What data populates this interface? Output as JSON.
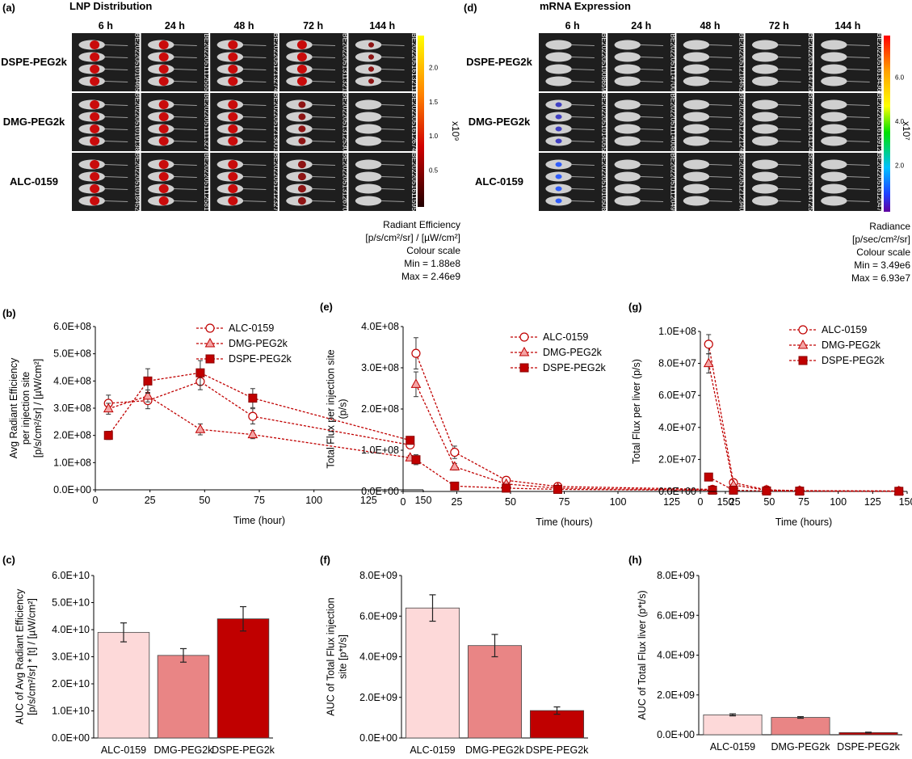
{
  "panels": {
    "a": {
      "label": "(a)",
      "title": "LNP Distribution",
      "columns": [
        "6 h",
        "24 h",
        "48 h",
        "72 h",
        "144 h"
      ],
      "rows": [
        "DSPE-PEG2k",
        "DMG-PEG2k",
        "ALC-0159"
      ],
      "image_ids": [
        [
          "BE2022051019465",
          "BE2022051112555",
          "BE2022051213274",
          "BE2022051311321",
          "BE2022051613211"
        ],
        [
          "BE2022051019138",
          "BE2022051111327",
          "BE2022051213001",
          "BE2022051312530",
          "BE2022051612674"
        ],
        [
          "BE2022051018452",
          "BE2022051112581",
          "BE2022051212327",
          "BE2022051312670",
          "BE2022051611595"
        ]
      ],
      "colorbar_ticks": [
        "2.0",
        "1.5",
        "1.0",
        "0.5"
      ],
      "colorbar_exp": "x10⁹",
      "scale_text": [
        "Radiant Efficiency",
        "[p/s/cm²/sr] / [µW/cm²]",
        "Colour scale",
        "Min = 1.88e8",
        "Max = 2.46e9"
      ]
    },
    "d": {
      "label": "(d)",
      "title": "mRNA Expression",
      "columns": [
        "6 h",
        "24 h",
        "48 h",
        "72 h",
        "144 h"
      ],
      "rows": [
        "DSPE-PEG2k",
        "DMG-PEG2k",
        "ALC-0159"
      ],
      "image_ids": [
        [
          "BE2022051008659",
          "BE2022051114700",
          "BE2022051218452",
          "BE2022051314725",
          "BE2022051613436"
        ],
        [
          "BE2022051014055",
          "BE2022051114008",
          "BE2022051212124",
          "BE2022051314124",
          "BE2022051615912"
        ],
        [
          "BE2022051010508",
          "BE2022051112049",
          "BE2022051212340",
          "BE2022051314725",
          "BE2022051612047"
        ]
      ],
      "colorbar_ticks": [
        "6.0",
        "4.0",
        "2.0"
      ],
      "colorbar_exp": "x10⁷",
      "scale_text": [
        "Radiance",
        "[p/sec/cm²/sr]",
        "Colour scale",
        "Min = 3.49e6",
        "Max = 6.93e7"
      ]
    },
    "b": {
      "label": "(b)"
    },
    "e": {
      "label": "(e)"
    },
    "g": {
      "label": "(g)"
    },
    "c": {
      "label": "(c)"
    },
    "f": {
      "label": "(f)"
    },
    "h": {
      "label": "(h)"
    }
  },
  "colors": {
    "alc_fill": "#fdd9d9",
    "dmg_fill": "#e98585",
    "dspe_fill": "#c00000",
    "line": "#c00000",
    "tri_fill": "#f4a5a5",
    "panel_bg": "#1e1e1e"
  },
  "chart_data": [
    {
      "id": "b",
      "type": "line",
      "ylabel": [
        "Avg Radiant Efficiency",
        "per injection site",
        "[p/s/cm²/sr] / [µW/cm²]"
      ],
      "xlabel": "Time (hour)",
      "xlim": [
        0,
        150
      ],
      "xticks": [
        0,
        25,
        50,
        75,
        100,
        125,
        150
      ],
      "ylim": [
        0,
        600000000
      ],
      "yticks": [
        "0.0E+00",
        "1.0E+08",
        "2.0E+08",
        "3.0E+08",
        "4.0E+08",
        "5.0E+08",
        "6.0E+08"
      ],
      "legend": "top-right",
      "series": [
        {
          "name": "ALC-0159",
          "marker": "circle",
          "x": [
            6,
            24,
            48,
            72,
            144
          ],
          "y": [
            318000000,
            328000000,
            398000000,
            270000000,
            165000000
          ],
          "err": [
            30000000,
            30000000,
            30000000,
            28000000,
            12000000
          ]
        },
        {
          "name": "DMG-PEG2k",
          "marker": "triangle",
          "x": [
            6,
            24,
            48,
            72,
            144
          ],
          "y": [
            298000000,
            345000000,
            222000000,
            203000000,
            118000000
          ],
          "err": [
            20000000,
            22000000,
            20000000,
            15000000,
            8000000
          ]
        },
        {
          "name": "DSPE-PEG2k",
          "marker": "square",
          "x": [
            6,
            24,
            48,
            72,
            144
          ],
          "y": [
            200000000,
            400000000,
            430000000,
            337000000,
            182000000
          ],
          "err": [
            15000000,
            45000000,
            45000000,
            35000000,
            12000000
          ]
        }
      ]
    },
    {
      "id": "e",
      "type": "line",
      "ylabel": [
        "Total Flux  per injection site",
        "(p/s)"
      ],
      "xlabel": "Time (hours)",
      "xlim": [
        0,
        150
      ],
      "xticks": [
        0,
        25,
        50,
        75,
        100,
        125,
        150
      ],
      "ylim": [
        0,
        400000000
      ],
      "yticks": [
        "0.0E+00",
        "1.0E+08",
        "2.0E+08",
        "3.0E+08",
        "4.0E+08"
      ],
      "legend": "top-right",
      "series": [
        {
          "name": "ALC-0159",
          "marker": "circle",
          "x": [
            6,
            24,
            48,
            72,
            144
          ],
          "y": [
            335000000,
            95000000,
            27000000,
            12000000,
            5000000
          ],
          "err": [
            38000000,
            15000000,
            5000000,
            3000000,
            2000000
          ]
        },
        {
          "name": "DMG-PEG2k",
          "marker": "triangle",
          "x": [
            6,
            24,
            48,
            72,
            144
          ],
          "y": [
            260000000,
            60000000,
            18000000,
            8000000,
            3000000
          ],
          "err": [
            30000000,
            8000000,
            4000000,
            2000000,
            1000000
          ]
        },
        {
          "name": "DSPE-PEG2k",
          "marker": "square",
          "x": [
            6,
            24,
            48,
            72,
            144
          ],
          "y": [
            77000000,
            13000000,
            8000000,
            5000000,
            3000000
          ],
          "err": [
            12000000,
            3000000,
            2000000,
            1000000,
            1000000
          ]
        }
      ]
    },
    {
      "id": "g",
      "type": "line",
      "ylabel": [
        "Total Flux per liver (p/s)"
      ],
      "xlabel": "Time (hours)",
      "xlim": [
        0,
        150
      ],
      "xticks": [
        0,
        25,
        50,
        75,
        100,
        125,
        150
      ],
      "ylim": [
        0,
        100000000
      ],
      "yticks": [
        "0.0E+00",
        "2.0E+07",
        "4.0E+07",
        "6.0E+07",
        "8.0E+07",
        "1.0E+08"
      ],
      "legend": "top-right",
      "series": [
        {
          "name": "ALC-0159",
          "marker": "circle",
          "x": [
            6,
            24,
            48,
            72,
            144
          ],
          "y": [
            92000000,
            5500000,
            1000000,
            500000,
            300000
          ],
          "err": [
            6000000,
            1000000,
            300000,
            200000,
            100000
          ]
        },
        {
          "name": "DMG-PEG2k",
          "marker": "triangle",
          "x": [
            6,
            24,
            48,
            72,
            144
          ],
          "y": [
            80000000,
            4000000,
            800000,
            400000,
            200000
          ],
          "err": [
            6000000,
            800000,
            200000,
            100000,
            100000
          ]
        },
        {
          "name": "DSPE-PEG2k",
          "marker": "square",
          "x": [
            6,
            24,
            48,
            72,
            144
          ],
          "y": [
            9000000,
            800000,
            300000,
            200000,
            100000
          ],
          "err": [
            1000000,
            200000,
            100000,
            100000,
            50000
          ]
        }
      ]
    },
    {
      "id": "c",
      "type": "bar",
      "ylabel": [
        "AUC of Avg Radiant Efficiency",
        "[p/s/cm²/sr] * [t] / [µW/cm²]"
      ],
      "categories": [
        "ALC-0159",
        "DMG-PEG2k",
        "DSPE-PEG2k"
      ],
      "values": [
        39000000000,
        30500000000,
        44000000000
      ],
      "err": [
        3500000000,
        2500000000,
        4500000000
      ],
      "ylim": [
        0,
        60000000000
      ],
      "yticks": [
        "0.0E+00",
        "1.0E+10",
        "2.0E+10",
        "3.0E+10",
        "4.0E+10",
        "5.0E+10",
        "6.0E+10"
      ]
    },
    {
      "id": "f",
      "type": "bar",
      "ylabel": [
        "AUC of  Total Flux  injection",
        "site [p*t/s]"
      ],
      "categories": [
        "ALC-0159",
        "DMG-PEG2k",
        "DSPE-PEG2k"
      ],
      "values": [
        6400000000,
        4550000000,
        1350000000
      ],
      "err": [
        650000000,
        550000000,
        180000000
      ],
      "ylim": [
        0,
        8000000000
      ],
      "yticks": [
        "0.0E+00",
        "2.0E+09",
        "4.0E+09",
        "6.0E+09",
        "8.0E+09"
      ]
    },
    {
      "id": "h",
      "type": "bar",
      "ylabel": [
        "AUC of Total Flux  liver (p*t/s)"
      ],
      "categories": [
        "ALC-0159",
        "DMG-PEG2k",
        "DSPE-PEG2k"
      ],
      "values": [
        1000000000,
        870000000,
        110000000
      ],
      "err": [
        50000000,
        40000000,
        20000000
      ],
      "ylim": [
        0,
        8000000000
      ],
      "yticks": [
        "0.0E+00",
        "2.0E+09",
        "4.0E+09",
        "6.0E+09",
        "8.0E+09"
      ]
    }
  ]
}
